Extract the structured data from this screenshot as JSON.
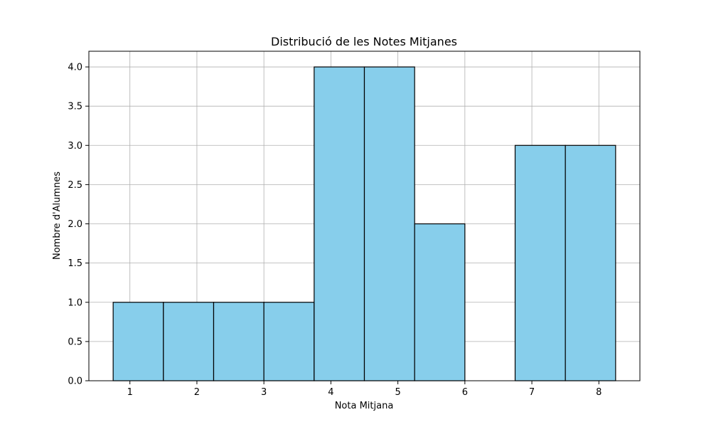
{
  "chart_data": {
    "type": "bar",
    "title": "Distribució de les Notes Mitjanes",
    "xlabel": "Nota Mitjana",
    "ylabel": "Nombre d'Alumnes",
    "xlim": [
      0.3875,
      8.6125
    ],
    "ylim": [
      0,
      4.2
    ],
    "xticks": [
      1,
      2,
      3,
      4,
      5,
      6,
      7,
      8
    ],
    "yticks": [
      "0.0",
      "0.5",
      "1.0",
      "1.5",
      "2.0",
      "2.5",
      "3.0",
      "3.5",
      "4.0"
    ],
    "grid": true,
    "bins": [
      {
        "x0": 0.75,
        "x1": 1.5,
        "value": 1
      },
      {
        "x0": 1.5,
        "x1": 2.25,
        "value": 1
      },
      {
        "x0": 2.25,
        "x1": 3.0,
        "value": 1
      },
      {
        "x0": 3.0,
        "x1": 3.75,
        "value": 1
      },
      {
        "x0": 3.75,
        "x1": 4.5,
        "value": 4
      },
      {
        "x0": 4.5,
        "x1": 5.25,
        "value": 4
      },
      {
        "x0": 5.25,
        "x1": 6.0,
        "value": 2
      },
      {
        "x0": 6.0,
        "x1": 6.75,
        "value": 0
      },
      {
        "x0": 6.75,
        "x1": 7.5,
        "value": 3
      },
      {
        "x0": 7.5,
        "x1": 8.25,
        "value": 3
      }
    ],
    "colors": {
      "bar_fill": "#87ceeb",
      "bar_edge": "#000000",
      "grid": "#b0b0b0"
    }
  }
}
